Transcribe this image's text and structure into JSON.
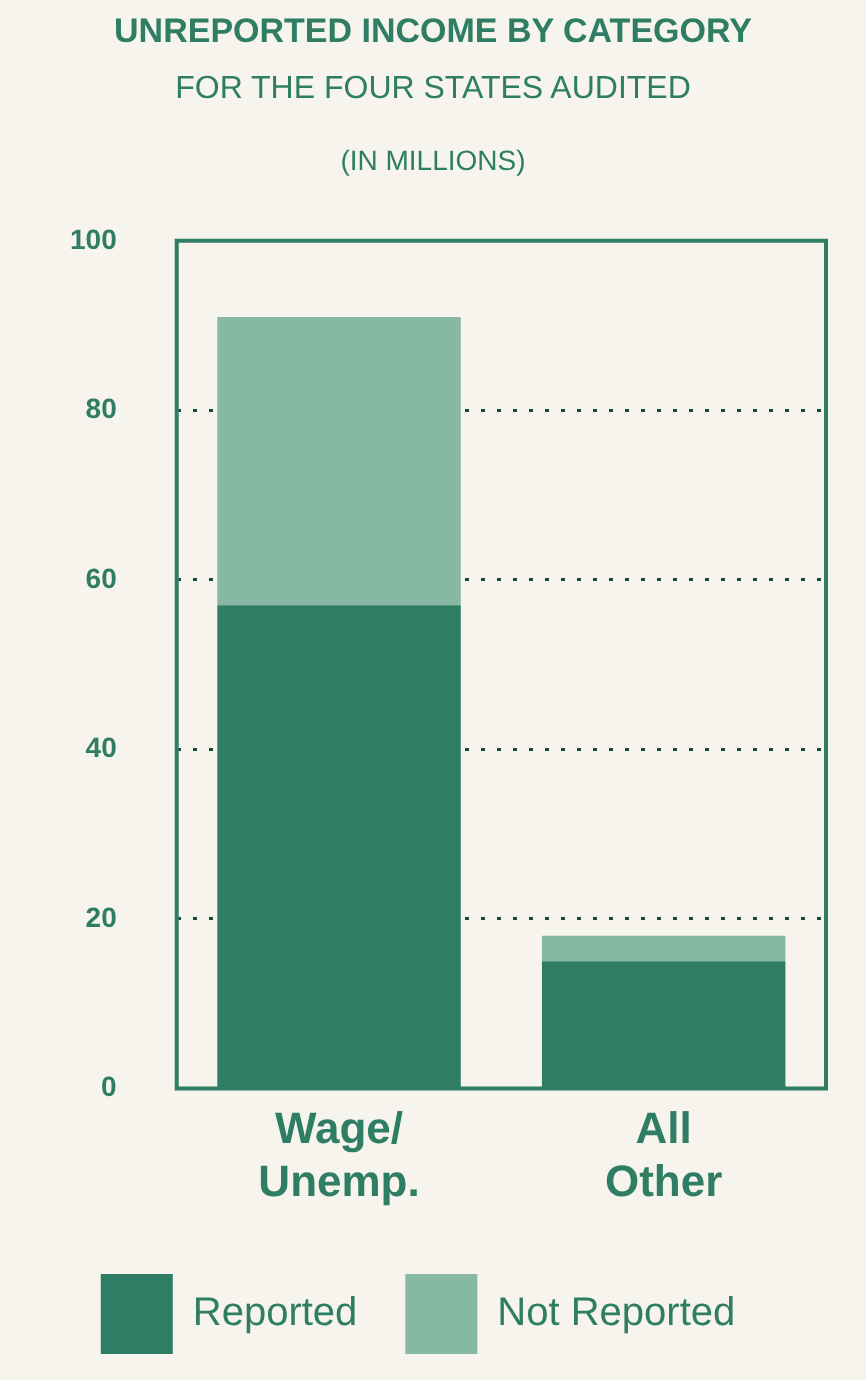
{
  "chart_data": {
    "type": "bar",
    "title": "UNREPORTED INCOME BY CATEGORY",
    "subtitle": "FOR THE FOUR STATES AUDITED",
    "ylabel": "(IN MILLIONS)",
    "categories": [
      "Wage/\nUnemp.",
      "All\nOther"
    ],
    "stacked": true,
    "series": [
      {
        "name": "Reported",
        "color": "#2e7d64",
        "values": [
          57,
          15
        ]
      },
      {
        "name": "Not Reported",
        "color": "#86b8a3",
        "values": [
          34,
          3
        ]
      }
    ],
    "ylim": [
      0,
      100
    ],
    "yticks": [
      0,
      20,
      40,
      60,
      80,
      100
    ],
    "grid": "y",
    "legend": "bottom"
  }
}
